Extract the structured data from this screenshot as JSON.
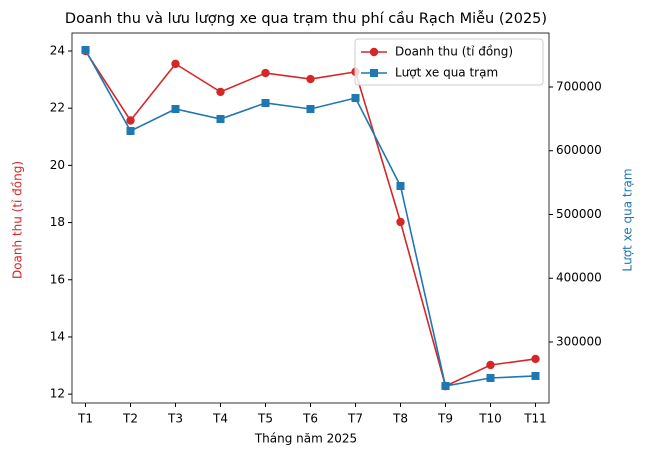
{
  "chart_data": {
    "type": "line",
    "title": "Doanh thu và lưu lượng xe qua trạm thu phí cầu Rạch Miễu (2025)",
    "x_label": "Tháng năm 2025",
    "y_label": "Doanh thu (tỉ đồng)",
    "y2_label": "Lượt xe qua trạm",
    "categories": [
      "T1",
      "T2",
      "T3",
      "T4",
      "T5",
      "T6",
      "T7",
      "T8",
      "T9",
      "T10",
      "T11"
    ],
    "series": [
      {
        "name": "Doanh thu (tỉ đồng)",
        "color": "#d62728",
        "marker": "circle",
        "values": [
          24.0,
          21.57,
          23.55,
          22.57,
          23.23,
          23.02,
          23.27,
          18.02,
          12.28,
          13.02,
          13.23
        ]
      },
      {
        "name": "Lượt xe qua trạm",
        "color": "#1f77b4",
        "marker": "square",
        "axis": "y2",
        "values": [
          758000,
          631000,
          665500,
          649800,
          674900,
          665500,
          682700,
          544700,
          231000,
          243500,
          246700
        ]
      }
    ],
    "ylim": [
      11.69,
      24.63
    ],
    "yticks": [
      12,
      14,
      16,
      18,
      20,
      22,
      24
    ],
    "y2lim": [
      204300,
      784700
    ],
    "y2ticks": [
      300000,
      400000,
      500000,
      600000,
      700000
    ],
    "legend": "upper right",
    "grid": false
  }
}
